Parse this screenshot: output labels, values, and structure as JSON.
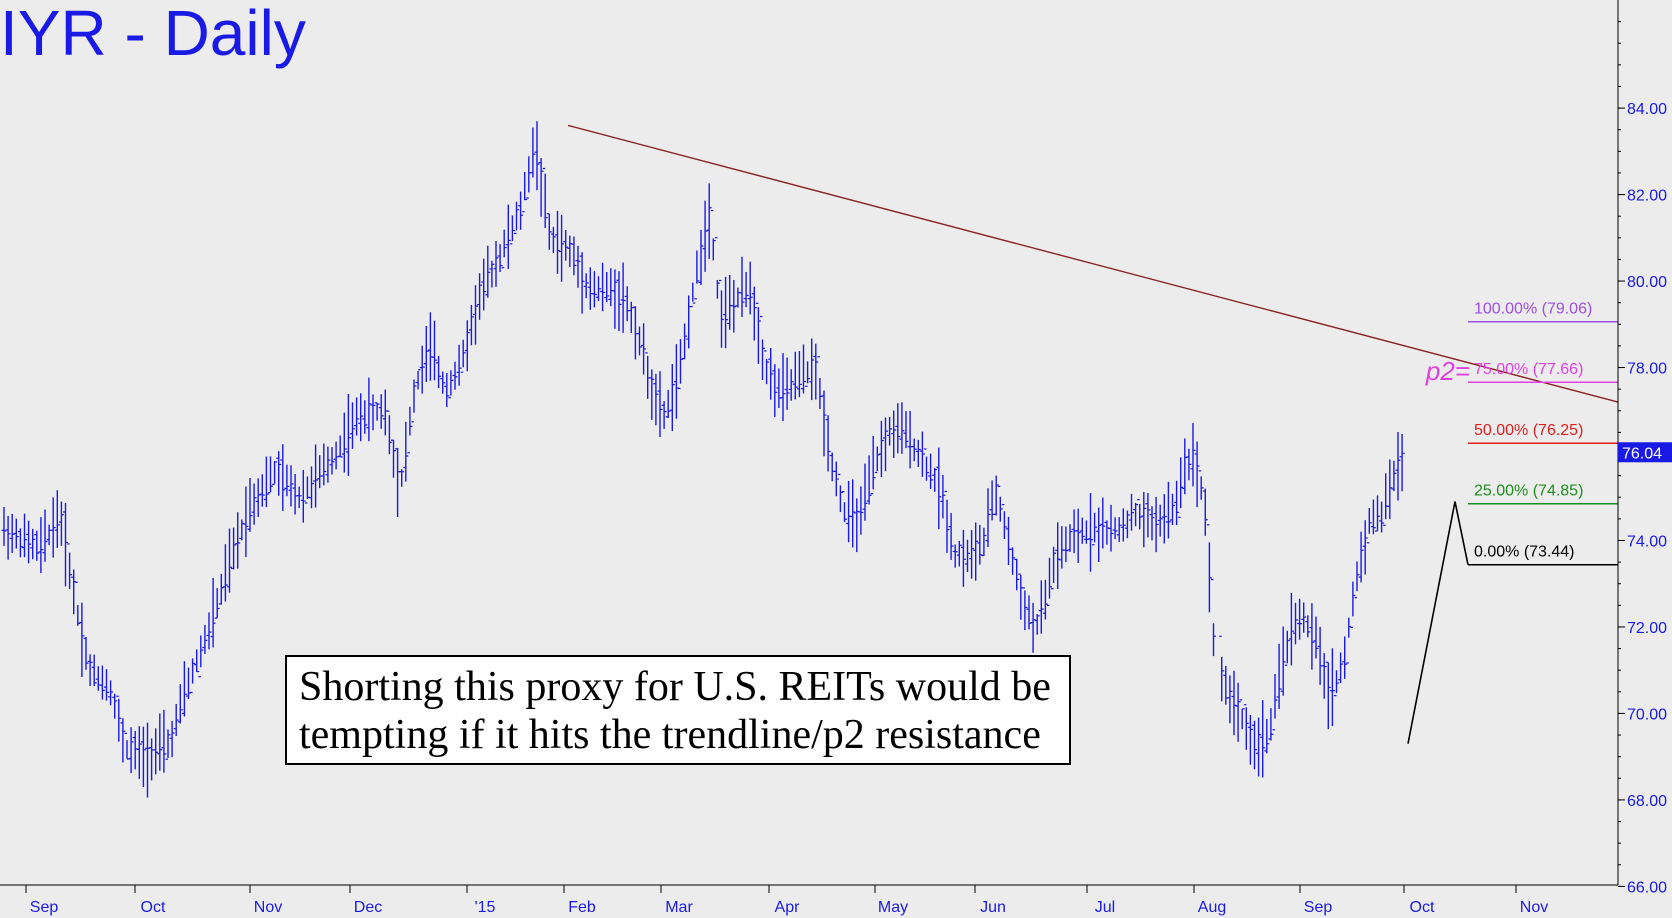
{
  "title": "IYR - Daily",
  "annotation": {
    "line1": "Shorting this proxy for U.S. REITs would be",
    "line2": "tempting if it hits the trendline/p2 resistance"
  },
  "colors": {
    "background": "#ececec",
    "bars": "#1a1ae6",
    "trendline": "#8b2323",
    "axis_text": "#1a1ae6",
    "last_price_bg": "#1a1ae6"
  },
  "chart_data": {
    "type": "ohlc",
    "title": "IYR - Daily",
    "ylim": [
      65.5,
      86.5
    ],
    "y_ticks": [
      "66.00",
      "68.00",
      "70.00",
      "72.00",
      "74.00",
      "76.00",
      "78.00",
      "80.00",
      "82.00",
      "84.00"
    ],
    "x_ticks": [
      "Sep",
      "Oct",
      "Nov",
      "Dec",
      "'15",
      "Feb",
      "Mar",
      "Apr",
      "May",
      "Jun",
      "Jul",
      "Aug",
      "Sep",
      "Oct",
      "Nov"
    ],
    "last_price": "76.04",
    "trendline": {
      "from": {
        "label": "Jan high",
        "value": 83.6
      },
      "to": {
        "label": "right edge",
        "value": 77.2
      }
    },
    "targets": [
      {
        "label": "100.00% (79.06)",
        "value": 79.06,
        "color": "#9b4fe0"
      },
      {
        "label": "75.00% (77.66)",
        "value": 77.66,
        "color": "#e040e0",
        "prefix": "p2="
      },
      {
        "label": "50.00% (76.25)",
        "value": 76.25,
        "color": "#e02020"
      },
      {
        "label": "25.00% (74.85)",
        "value": 74.85,
        "color": "#1f8f1f"
      },
      {
        "label": "0.00% (73.44)",
        "value": 73.44,
        "color": "#000000"
      }
    ],
    "path_anchors": [
      [
        0,
        74.3
      ],
      [
        40,
        73.8
      ],
      [
        60,
        74.6
      ],
      [
        80,
        72.0
      ],
      [
        90,
        71.0
      ],
      [
        110,
        70.6
      ],
      [
        125,
        69.2
      ],
      [
        145,
        69.0
      ],
      [
        170,
        69.3
      ],
      [
        185,
        70.5
      ],
      [
        210,
        72.0
      ],
      [
        230,
        73.5
      ],
      [
        250,
        74.8
      ],
      [
        275,
        75.6
      ],
      [
        300,
        75.0
      ],
      [
        330,
        75.8
      ],
      [
        360,
        76.9
      ],
      [
        385,
        77.0
      ],
      [
        400,
        75.2
      ],
      [
        415,
        77.5
      ],
      [
        430,
        78.5
      ],
      [
        445,
        77.5
      ],
      [
        460,
        78.0
      ],
      [
        480,
        79.7
      ],
      [
        500,
        80.6
      ],
      [
        520,
        81.6
      ],
      [
        535,
        83.2
      ],
      [
        550,
        81.0
      ],
      [
        570,
        80.7
      ],
      [
        590,
        79.8
      ],
      [
        610,
        79.8
      ],
      [
        625,
        79.6
      ],
      [
        640,
        78.6
      ],
      [
        655,
        77.2
      ],
      [
        665,
        76.9
      ],
      [
        680,
        77.9
      ],
      [
        690,
        79.4
      ],
      [
        700,
        80.6
      ],
      [
        710,
        81.6
      ],
      [
        720,
        79.2
      ],
      [
        735,
        79.5
      ],
      [
        750,
        79.9
      ],
      [
        765,
        78.0
      ],
      [
        780,
        77.4
      ],
      [
        800,
        77.8
      ],
      [
        815,
        78.0
      ],
      [
        830,
        76.0
      ],
      [
        845,
        74.6
      ],
      [
        860,
        74.5
      ],
      [
        875,
        75.8
      ],
      [
        890,
        76.5
      ],
      [
        905,
        76.5
      ],
      [
        925,
        75.8
      ],
      [
        940,
        75.2
      ],
      [
        955,
        73.7
      ],
      [
        970,
        73.6
      ],
      [
        985,
        74.0
      ],
      [
        995,
        75.2
      ],
      [
        1005,
        74.3
      ],
      [
        1020,
        72.8
      ],
      [
        1035,
        71.9
      ],
      [
        1045,
        72.6
      ],
      [
        1055,
        73.6
      ],
      [
        1075,
        74.1
      ],
      [
        1095,
        74.3
      ],
      [
        1115,
        74.2
      ],
      [
        1135,
        74.6
      ],
      [
        1155,
        74.4
      ],
      [
        1175,
        74.7
      ],
      [
        1185,
        75.8
      ],
      [
        1195,
        75.9
      ],
      [
        1205,
        74.8
      ],
      [
        1215,
        71.2
      ],
      [
        1225,
        70.6
      ],
      [
        1240,
        70.0
      ],
      [
        1255,
        69.2
      ],
      [
        1270,
        69.6
      ],
      [
        1285,
        71.5
      ],
      [
        1300,
        72.3
      ],
      [
        1315,
        71.7
      ],
      [
        1330,
        70.4
      ],
      [
        1345,
        71.3
      ],
      [
        1355,
        73.0
      ],
      [
        1370,
        74.5
      ],
      [
        1382,
        74.6
      ],
      [
        1395,
        75.6
      ],
      [
        1405,
        76.0
      ]
    ]
  }
}
